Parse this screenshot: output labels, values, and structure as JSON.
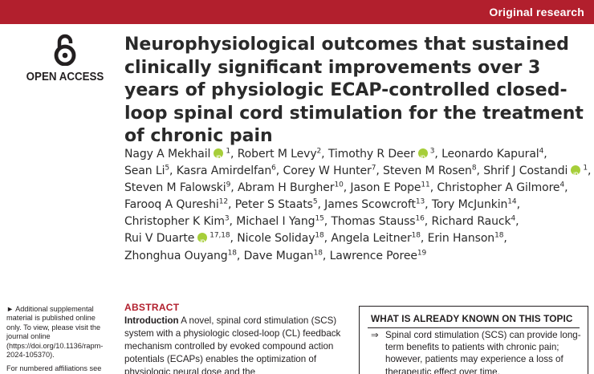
{
  "header": {
    "section_label": "Original research",
    "band_color": "#b21f2d"
  },
  "open_access": {
    "icon": "open-access-lock-icon",
    "label": "OPEN ACCESS"
  },
  "article": {
    "title": "Neurophysiological outcomes that sustained clinically significant improvements over 3 years of physiologic ECAP-controlled closed-loop spinal cord stimulation for the treatment of chronic pain",
    "author_lines": [
      [
        {
          "name": "Nagy A Mekhail",
          "orcid": true,
          "aff": "1"
        },
        {
          "sep": ", "
        },
        {
          "name": "Robert M Levy",
          "aff": "2"
        },
        {
          "sep": " "
        },
        {
          "name": "Timothy R Deer",
          "orcid": true,
          "aff": "3"
        },
        {
          "sep": " "
        },
        {
          "name": "Leonardo Kapural",
          "aff": "4"
        }
      ],
      [
        {
          "name": "Sean Li",
          "aff": "5"
        },
        {
          "sep": " "
        },
        {
          "name": "Kasra Amirdelfan",
          "aff": "6"
        },
        {
          "sep": " "
        },
        {
          "name": "Corey W Hunter",
          "aff": "7"
        },
        {
          "sep": " "
        },
        {
          "name": "Steven M Rosen",
          "aff": "8"
        },
        {
          "sep": " "
        },
        {
          "name": "Shrif J Costandi",
          "orcid": true,
          "aff": "1"
        }
      ],
      [
        {
          "name": "Steven M Falowski",
          "aff": "9"
        },
        {
          "sep": " "
        },
        {
          "name": "Abram H Burgher",
          "aff": "10"
        },
        {
          "sep": " "
        },
        {
          "name": "Jason E Pope",
          "aff": "11"
        },
        {
          "sep": " "
        },
        {
          "name": "Christopher A Gilmore",
          "aff": "4"
        }
      ],
      [
        {
          "name": "Farooq A Qureshi",
          "aff": "12"
        },
        {
          "sep": " "
        },
        {
          "name": "Peter S Staats",
          "aff": "5"
        },
        {
          "sep": " "
        },
        {
          "name": "James Scowcroft",
          "aff": "13"
        },
        {
          "sep": " "
        },
        {
          "name": "Tory McJunkin",
          "aff": "14"
        }
      ],
      [
        {
          "name": "Christopher K Kim",
          "aff": "3"
        },
        {
          "sep": " "
        },
        {
          "name": "Michael I Yang",
          "aff": "15"
        },
        {
          "sep": " "
        },
        {
          "name": "Thomas Stauss",
          "aff": "16"
        },
        {
          "sep": " "
        },
        {
          "name": "Richard Rauck",
          "aff": "4"
        }
      ],
      [
        {
          "name": "Rui V Duarte",
          "orcid": true,
          "aff": "17,18"
        },
        {
          "sep": " "
        },
        {
          "name": "Nicole Soliday",
          "aff": "18"
        },
        {
          "sep": " "
        },
        {
          "name": "Angela Leitner",
          "aff": "18"
        },
        {
          "sep": " "
        },
        {
          "name": "Erin Hanson",
          "aff": "18"
        }
      ],
      [
        {
          "name": "Zhonghua Ouyang",
          "aff": "18"
        },
        {
          "sep": " "
        },
        {
          "name": "Dave Mugan",
          "aff": "18"
        },
        {
          "sep": " "
        },
        {
          "name": "Lawrence Poree",
          "aff": "19"
        }
      ]
    ]
  },
  "sidenote": {
    "supplemental": "► Additional supplemental material is published online only. To view, please visit the journal online (https://doi.org/10.1136/rapm-2024-105370).",
    "affiliations": "For numbered affiliations see end of article."
  },
  "abstract": {
    "heading": "ABSTRACT",
    "intro_label": "Introduction",
    "intro_text": " A novel, spinal cord stimulation (SCS) system with a physiologic closed-loop (CL) feedback mechanism controlled by evoked compound action potentials (ECAPs) enables the optimization of physiologic neural dose and the"
  },
  "known_box": {
    "heading": "WHAT IS ALREADY KNOWN ON THIS TOPIC",
    "bullet_symbol": "⇒",
    "text": "Spinal cord stimulation (SCS) can provide long-term benefits to patients with chronic pain; however, patients may experience a loss of therapeutic effect over time."
  }
}
